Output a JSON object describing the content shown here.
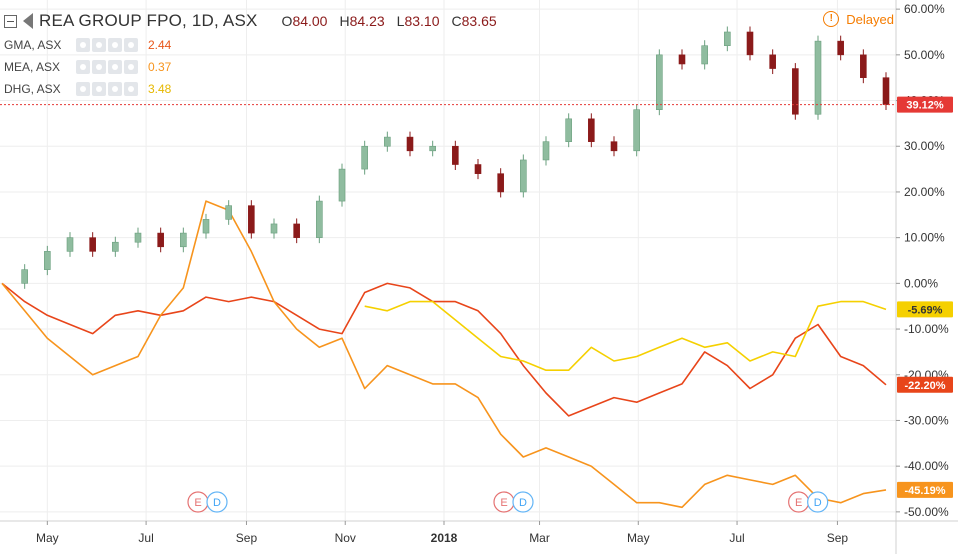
{
  "header": {
    "title": "REA GROUP FPO, 1D, ASX",
    "open_label": "O",
    "open": "84.00",
    "high_label": "H",
    "high": "84.23",
    "low_label": "L",
    "low": "83.10",
    "close_label": "C",
    "close": "83.65",
    "delayed_label": "Delayed",
    "delayed_icon": "info-alert-icon",
    "collapse_icon": "collapse-icon",
    "flag_icon": "flag-icon"
  },
  "legend": [
    {
      "name": "GMA, ASX",
      "value": "2.44",
      "color": "#e8561a"
    },
    {
      "name": "MEA, ASX",
      "value": "0.37",
      "color": "#f7941d"
    },
    {
      "name": "DHG, ASX",
      "value": "3.48",
      "color": "#f9c80e"
    }
  ],
  "colors": {
    "up": "#8fbc9f",
    "down": "#8b1a1a",
    "gma": "#e8451a",
    "mea": "#f7941d",
    "dhg": "#f5d000",
    "rea_label": "#e53935",
    "grid": "#eeeeee"
  },
  "chart_data": {
    "type": "line",
    "x_ticks": [
      "May",
      "Jul",
      "Sep",
      "Nov",
      "2018",
      "Mar",
      "May",
      "Jul",
      "Sep"
    ],
    "y_ticks": [
      "60.00%",
      "50.00%",
      "40.00%",
      "30.00%",
      "20.00%",
      "10.00%",
      "0.00%",
      "-10.00%",
      "-20.00%",
      "-30.00%",
      "-40.00%",
      "-50.00%"
    ],
    "y_tick_values": [
      60,
      50,
      40,
      30,
      20,
      10,
      0,
      -10,
      -20,
      -30,
      -40,
      -50
    ],
    "ylim": [
      -52,
      62
    ],
    "x": [
      "2017-04-03",
      "2017-04-17",
      "2017-05-01",
      "2017-05-15",
      "2017-05-29",
      "2017-06-12",
      "2017-06-26",
      "2017-07-10",
      "2017-07-24",
      "2017-08-07",
      "2017-08-21",
      "2017-09-04",
      "2017-09-18",
      "2017-10-02",
      "2017-10-16",
      "2017-10-30",
      "2017-11-13",
      "2017-11-27",
      "2017-12-11",
      "2017-12-25",
      "2018-01-08",
      "2018-01-22",
      "2018-02-05",
      "2018-02-19",
      "2018-03-05",
      "2018-03-19",
      "2018-04-02",
      "2018-04-16",
      "2018-04-30",
      "2018-05-14",
      "2018-05-28",
      "2018-06-11",
      "2018-06-25",
      "2018-07-09",
      "2018-07-23",
      "2018-08-06",
      "2018-08-20",
      "2018-09-03",
      "2018-09-17",
      "2018-10-01"
    ],
    "series": [
      {
        "name": "REA GROUP FPO",
        "style": "candles",
        "values": [
          0,
          3,
          7,
          10,
          7,
          9,
          11,
          8,
          11,
          14,
          17,
          11,
          13,
          10,
          18,
          25,
          30,
          32,
          29,
          30,
          26,
          24,
          20,
          27,
          31,
          36,
          31,
          29,
          38,
          50,
          48,
          52,
          55,
          50,
          47,
          37,
          53,
          50,
          45,
          39.12
        ],
        "last_label": "39.12%"
      },
      {
        "name": "GMA, ASX",
        "values": [
          0,
          -4,
          -7,
          -9,
          -11,
          -7,
          -6,
          -7,
          -6,
          -3,
          -4,
          -3,
          -4,
          -7,
          -10,
          -11,
          -2,
          0,
          -1,
          -4,
          -4,
          -6,
          -11,
          -18,
          -24,
          -29,
          -27,
          -25,
          -26,
          -24,
          -22,
          -15,
          -18,
          -23,
          -20,
          -12,
          -9,
          -16,
          -18,
          -22.2
        ],
        "last_label": "-22.20%"
      },
      {
        "name": "MEA, ASX",
        "values": [
          0,
          -6,
          -12,
          -16,
          -20,
          -18,
          -16,
          -7,
          -1,
          18,
          16,
          7,
          -4,
          -10,
          -14,
          -12,
          -23,
          -18,
          -20,
          -22,
          -22,
          -25,
          -33,
          -38,
          -36,
          -38,
          -40,
          -44,
          -48,
          -48,
          -49,
          -44,
          -42,
          -43,
          -44,
          -42,
          -47,
          -48,
          -46,
          -45.19
        ],
        "last_label": "-45.19%"
      },
      {
        "name": "DHG, ASX",
        "values": [
          null,
          null,
          null,
          null,
          null,
          null,
          null,
          null,
          null,
          null,
          null,
          null,
          null,
          null,
          null,
          null,
          -5,
          -6,
          -4,
          -4,
          -8,
          -12,
          -16,
          -17,
          -19,
          -19,
          -14,
          -17,
          -16,
          -14,
          -12,
          -14,
          -13,
          -17,
          -15,
          -16,
          -5,
          -4,
          -4,
          -5.69
        ],
        "last_label": "-5.69%"
      }
    ],
    "events": [
      {
        "x": "2017-08-07",
        "labels": [
          "E",
          "D"
        ]
      },
      {
        "x": "2018-02-12",
        "labels": [
          "E",
          "D"
        ]
      },
      {
        "x": "2018-08-13",
        "labels": [
          "E",
          "D"
        ]
      }
    ],
    "price_line": 39.12,
    "grid": true
  }
}
